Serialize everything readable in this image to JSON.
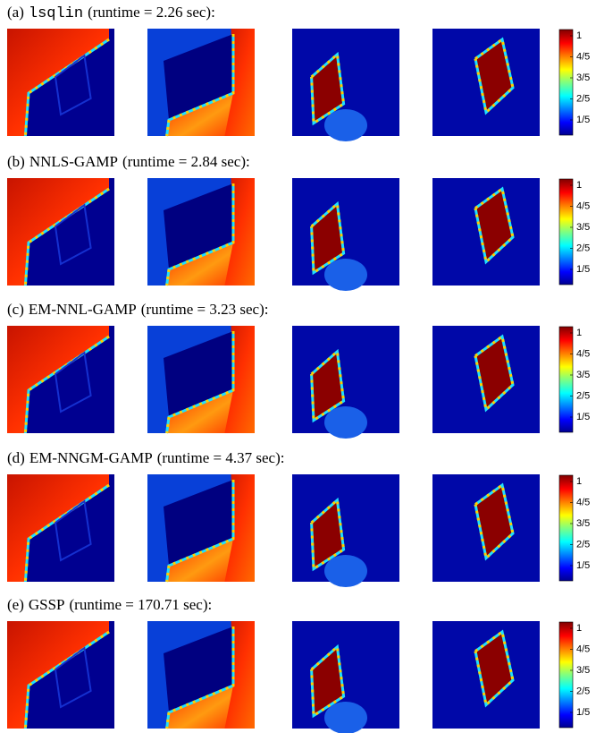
{
  "panels": [
    {
      "label": "(a)",
      "method": "lsqlin",
      "runtime": "(runtime = 2.26 sec):"
    },
    {
      "label": "(b)",
      "method": "NNLS-GAMP",
      "runtime": "(runtime = 2.84 sec):"
    },
    {
      "label": "(c)",
      "method": "EM-NNL-GAMP",
      "runtime": "(runtime = 3.23 sec):"
    },
    {
      "label": "(d)",
      "method": "EM-NNGM-GAMP",
      "runtime": "(runtime = 4.37 sec):"
    },
    {
      "label": "(e)",
      "method": "GSSP",
      "runtime": "(runtime = 170.71 sec):"
    }
  ],
  "colorbar_ticks": [
    "1",
    "4/5",
    "3/5",
    "2/5",
    "1/5"
  ]
}
